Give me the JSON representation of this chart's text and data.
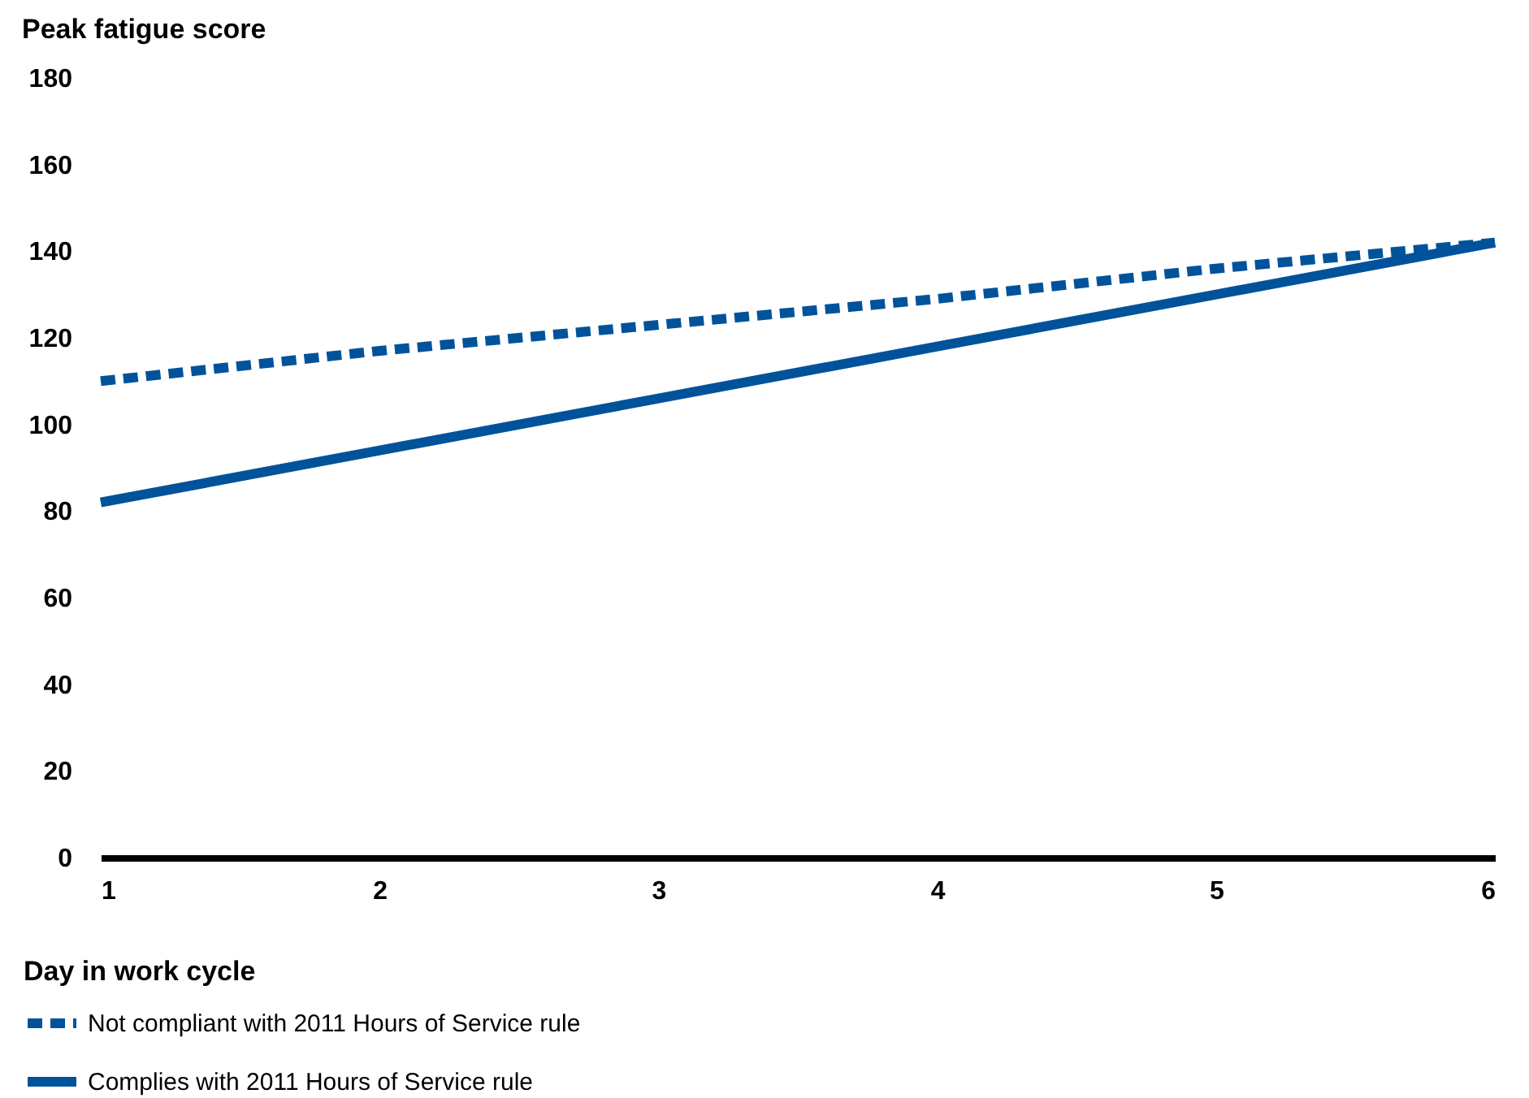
{
  "chart_data": {
    "type": "line",
    "ylabel": "Peak fatigue score",
    "xlabel": "Day in work cycle",
    "x": [
      1,
      2,
      3,
      4,
      5,
      6
    ],
    "xlim": [
      1,
      6
    ],
    "xticks": [
      1,
      2,
      3,
      4,
      5,
      6
    ],
    "ylim": [
      0,
      180
    ],
    "yticks": [
      0,
      20,
      40,
      60,
      80,
      100,
      120,
      140,
      160,
      180
    ],
    "grid": false,
    "legend": "bottom left",
    "marker": "none",
    "series": [
      {
        "name": "Not compliant with 2011 Hours of Service rule",
        "color": "#00539b",
        "line_style": "dashed",
        "values": [
          110,
          117,
          123,
          129,
          136,
          142
        ]
      },
      {
        "name": "Complies with 2011 Hours of Service rule",
        "color": "#00539b",
        "line_style": "solid",
        "values": [
          82,
          94,
          106,
          118,
          130,
          142
        ]
      }
    ]
  }
}
